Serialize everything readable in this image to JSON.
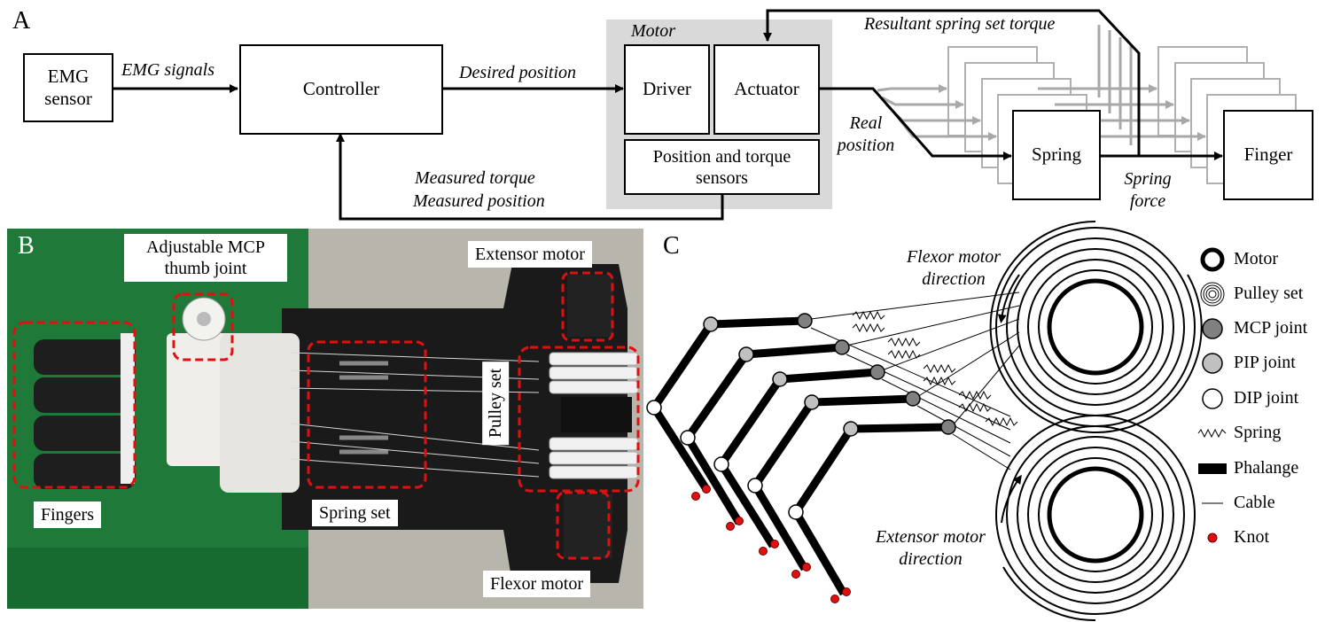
{
  "panel_a": {
    "letter": "A",
    "emg_sensor": "EMG sensor",
    "emg_signals": "EMG signals",
    "controller": "Controller",
    "desired_position": "Desired position",
    "motor_group": "Motor",
    "driver": "Driver",
    "actuator": "Actuator",
    "sensors": "Position and torque sensors",
    "measured_torque": "Measured  torque",
    "measured_position": "Measured position",
    "resultant_torque": "Resultant spring set torque",
    "real_position_1": "Real",
    "real_position_2": "position",
    "spring": "Spring",
    "spring_force_1": "Spring",
    "spring_force_2": "force",
    "finger": "Finger"
  },
  "panel_b": {
    "letter": "B",
    "thumb_joint": "Adjustable MCP thumb joint",
    "extensor_motor": "Extensor motor",
    "fingers": "Fingers",
    "spring_set": "Spring set",
    "pulley_set": "Pulley set",
    "flexor_motor": "Flexor motor"
  },
  "panel_c": {
    "letter": "C",
    "flexor_direction_1": "Flexor motor",
    "flexor_direction_2": "direction",
    "extensor_direction_1": "Extensor motor",
    "extensor_direction_2": "direction",
    "legend": [
      {
        "icon": "motor-icon",
        "label": "Motor"
      },
      {
        "icon": "pulley-set-icon",
        "label": "Pulley set"
      },
      {
        "icon": "mcp-joint-icon",
        "label": "MCP joint",
        "color": "#808080"
      },
      {
        "icon": "pip-joint-icon",
        "label": "PIP joint",
        "color": "#c0c0c0"
      },
      {
        "icon": "dip-joint-icon",
        "label": "DIP joint",
        "color": "#ffffff"
      },
      {
        "icon": "spring-icon",
        "label": "Spring"
      },
      {
        "icon": "phalange-icon",
        "label": "Phalange"
      },
      {
        "icon": "cable-icon",
        "label": "Cable"
      },
      {
        "icon": "knot-icon",
        "label": "Knot",
        "color": "#e01010"
      }
    ]
  }
}
